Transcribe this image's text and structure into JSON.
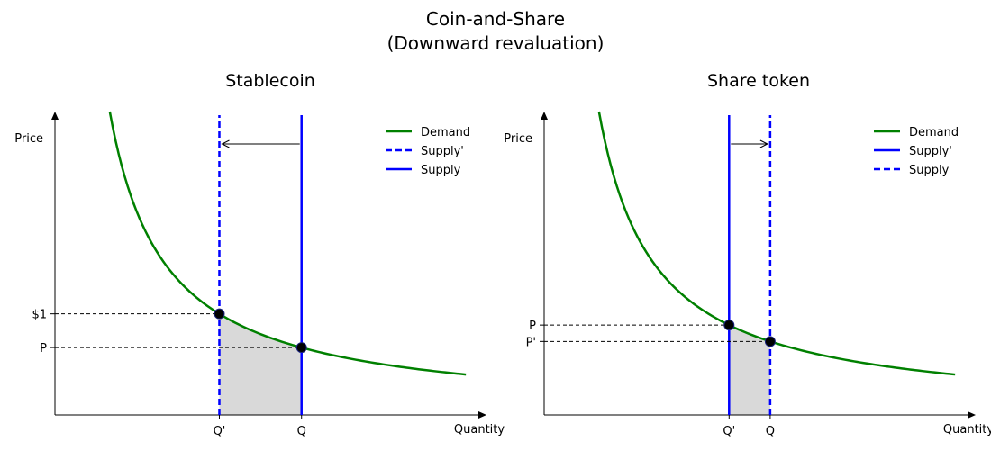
{
  "figure": {
    "title_line1": "Coin-and-Share",
    "title_line2": "(Downward revaluation)"
  },
  "chart_data": [
    {
      "type": "line",
      "title": "Stablecoin",
      "xlabel": "Quantity",
      "ylabel": "Price",
      "demand_curve": "price = k / quantity",
      "points": [
        {
          "label": "Q'",
          "price_label": "$1",
          "x": 2.0,
          "y": 1.0
        },
        {
          "label": "Q",
          "price_label": "P",
          "x": 3.0,
          "y": 0.667
        }
      ],
      "series": [
        {
          "name": "Demand",
          "color": "#008000",
          "style": "solid"
        },
        {
          "name": "Supply'",
          "color": "#0000ff",
          "style": "dashed",
          "x": 2.0
        },
        {
          "name": "Supply",
          "color": "#0000ff",
          "style": "solid",
          "x": 3.0
        }
      ],
      "shaded_region": "area under demand between Q' and Q",
      "arrow": "from Supply to Supply'",
      "legend": "top-right"
    },
    {
      "type": "line",
      "title": "Share token",
      "xlabel": "Quantity",
      "ylabel": "Price",
      "demand_curve": "price = k / quantity",
      "points": [
        {
          "label": "Q'",
          "price_label": "P",
          "x": 2.25,
          "y": 0.889
        },
        {
          "label": "Q",
          "price_label": "P'",
          "x": 2.75,
          "y": 0.727
        }
      ],
      "series": [
        {
          "name": "Demand",
          "color": "#008000",
          "style": "solid"
        },
        {
          "name": "Supply'",
          "color": "#0000ff",
          "style": "solid",
          "x": 2.25
        },
        {
          "name": "Supply",
          "color": "#0000ff",
          "style": "dashed",
          "x": 2.75
        }
      ],
      "shaded_region": "area under demand between Q' and Q",
      "arrow": "from Supply' to Supply",
      "legend": "top-right"
    }
  ]
}
